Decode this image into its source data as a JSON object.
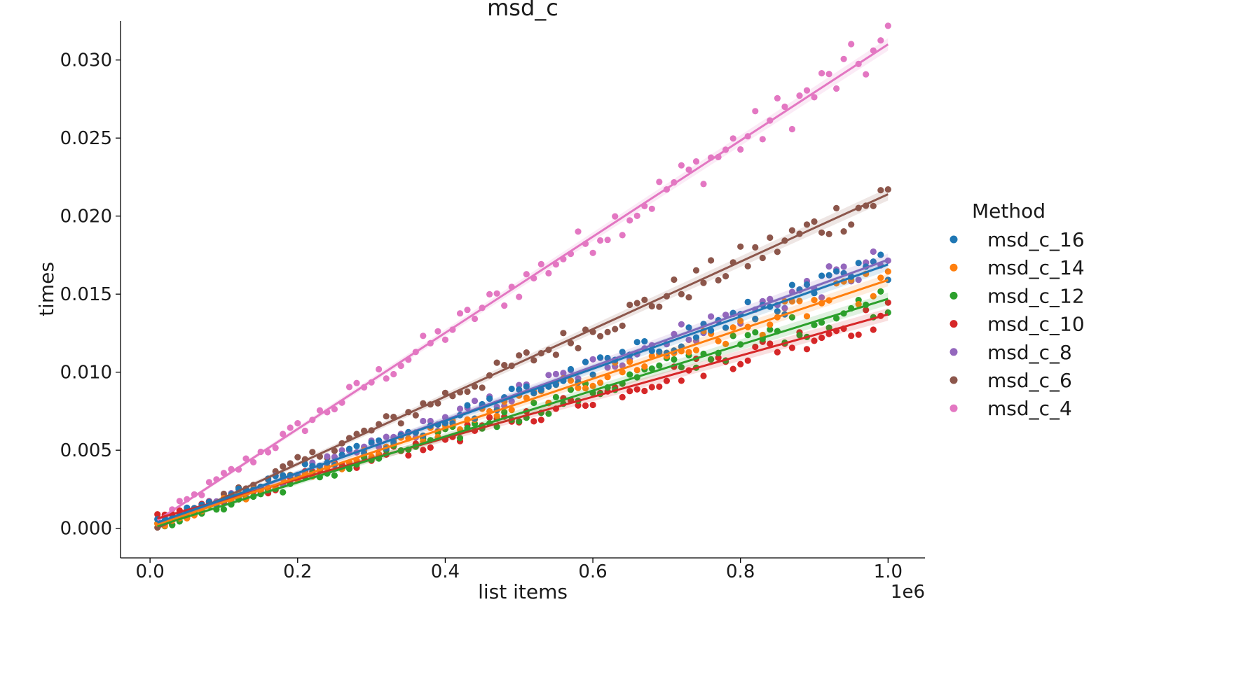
{
  "chart_data": {
    "type": "scatter",
    "title": "msd_c",
    "xlabel": "list items",
    "ylabel": "times",
    "x_offset_label": "1e6",
    "xlim": [
      -0.04,
      1.05
    ],
    "ylim": [
      -0.0019,
      0.0325
    ],
    "xticks": [
      0.0,
      0.2,
      0.4,
      0.6,
      0.8,
      1.0
    ],
    "xtick_labels": [
      "0.0",
      "0.2",
      "0.4",
      "0.6",
      "0.8",
      "1.0"
    ],
    "yticks": [
      0.0,
      0.005,
      0.01,
      0.015,
      0.02,
      0.025,
      0.03
    ],
    "ytick_labels": [
      "0.000",
      "0.005",
      "0.010",
      "0.015",
      "0.020",
      "0.025",
      "0.030"
    ],
    "grid": false,
    "legend": {
      "title": "Method",
      "placement": "right"
    },
    "x_range": [
      0.01,
      1.0
    ],
    "series": [
      {
        "name": "msd_c_16",
        "color": "#1f77b4",
        "fit": [
          0.0002,
          0.0167
        ]
      },
      {
        "name": "msd_c_14",
        "color": "#ff7f0e",
        "fit": [
          0.0001,
          0.0158
        ]
      },
      {
        "name": "msd_c_12",
        "color": "#2ca02c",
        "fit": [
          0.0,
          0.0147
        ]
      },
      {
        "name": "msd_c_10",
        "color": "#d62728",
        "fit": [
          0.0005,
          0.0132
        ]
      },
      {
        "name": "msd_c_8",
        "color": "#9467bd",
        "fit": [
          0.0001,
          0.0171
        ]
      },
      {
        "name": "msd_c_6",
        "color": "#8c564b",
        "fit": [
          -0.0002,
          0.0216
        ]
      },
      {
        "name": "msd_c_4",
        "color": "#e377c2",
        "fit": [
          0.0002,
          0.0308
        ]
      }
    ]
  }
}
